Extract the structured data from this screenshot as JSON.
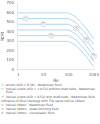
{
  "chart_data": {
    "type": "line",
    "x_label": "Re",
    "y_label": "NtM",
    "log": "x",
    "grid": false,
    "color": "#b0d8ee",
    "x": [
      1,
      50,
      100,
      200,
      500,
      1000
    ],
    "series": [
      {
        "values": [
          600,
          600,
          600,
          555,
          435,
          325
        ]
      },
      {
        "values": [
          540,
          540,
          540,
          495,
          375,
          265
        ]
      },
      {
        "values": [
          480,
          480,
          480,
          435,
          315,
          205
        ]
      },
      {
        "values": [
          420,
          420,
          420,
          375,
          255,
          145
        ]
      },
      {
        "values": [
          360,
          360,
          360,
          315,
          195,
          85
        ]
      },
      {
        "values": [
          300,
          300,
          300,
          255,
          140,
          30
        ]
      }
    ],
    "xlim": [
      0.9,
      1100
    ],
    "xticks": [
      1,
      10,
      100,
      1000
    ],
    "ylim": [
      0,
      700
    ],
    "yticks": [
      0,
      100,
      200,
      300,
      400,
      500,
      600,
      700
    ],
    "annotations": [
      {
        "x": 2,
        "y": 540,
        "text": "①"
      },
      {
        "x": 10,
        "y": 480,
        "text": "②"
      },
      {
        "x": 20,
        "y": 360,
        "text": "③"
      },
      {
        "x": 200,
        "y": 435,
        "text": "②"
      },
      {
        "x": 500,
        "y": 315,
        "text": "③"
      },
      {
        "x": 1000,
        "y": 145,
        "text": "③"
      }
    ],
    "key_rows": [
      {
        "num": "①",
        "text": "annex (d/D = 0.36) - Newtonian fluid"
      },
      {
        "num": "②",
        "text": "helical screw (d/D = 1 0.52) without draft tube - Newtonian fluid"
      },
      {
        "num": "③",
        "text": "helical screw (d/D = 0.52) with draft tube - Newtonian fluid"
      },
      {
        "text": "Influence of fluid rheology with The same helical ribbon:"
      },
      {
        "num": "④",
        "text": "helical ribbon - Newtonian fluid"
      },
      {
        "num": "⑤",
        "text": "helical ribbon - shear-thinning fluid"
      },
      {
        "num": "⑥",
        "text": "helical ribbon - viscoelastic fluid"
      }
    ]
  }
}
